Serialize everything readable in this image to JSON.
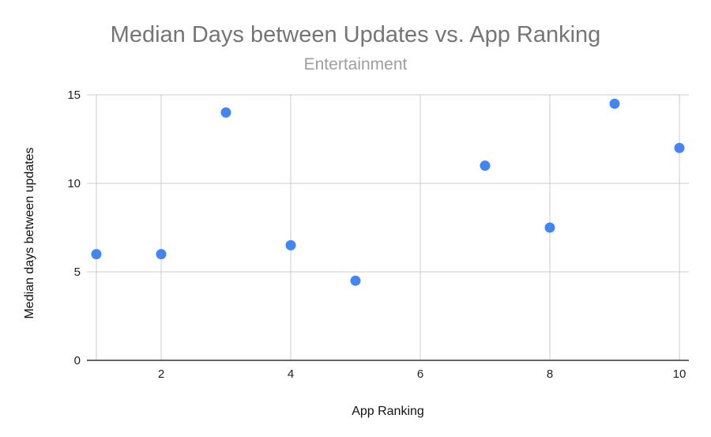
{
  "chart_data": {
    "type": "scatter",
    "title": "Median Days between Updates vs. App Ranking",
    "subtitle": "Entertainment",
    "xlabel": "App Ranking",
    "ylabel": "Median days between updates",
    "xlim": [
      1,
      10
    ],
    "ylim": [
      0,
      15
    ],
    "x_ticks": [
      2,
      4,
      6,
      8,
      10
    ],
    "y_ticks": [
      0,
      5,
      10,
      15
    ],
    "grid": true,
    "legend": "none",
    "point_color": "#4285f4",
    "points": [
      {
        "x": 1,
        "y": 6
      },
      {
        "x": 2,
        "y": 6
      },
      {
        "x": 3,
        "y": 14
      },
      {
        "x": 4,
        "y": 6.5
      },
      {
        "x": 5,
        "y": 4.5
      },
      {
        "x": 7,
        "y": 11
      },
      {
        "x": 8,
        "y": 7.5
      },
      {
        "x": 9,
        "y": 14.5
      },
      {
        "x": 10,
        "y": 12
      }
    ]
  }
}
